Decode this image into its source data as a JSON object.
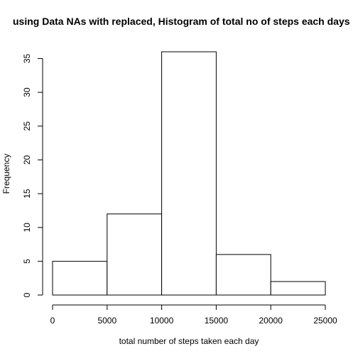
{
  "chart_data": {
    "type": "bar",
    "subtype": "histogram",
    "title": "using Data NAs with replaced, Histogram of total no of steps each days",
    "xlabel": "total number of steps taken each day",
    "ylabel": "Frequency",
    "bins": [
      {
        "start": 0,
        "end": 5000,
        "count": 5
      },
      {
        "start": 5000,
        "end": 10000,
        "count": 12
      },
      {
        "start": 10000,
        "end": 15000,
        "count": 36
      },
      {
        "start": 15000,
        "end": 20000,
        "count": 6
      },
      {
        "start": 20000,
        "end": 25000,
        "count": 2
      }
    ],
    "xlim": [
      0,
      25000
    ],
    "ylim": [
      0,
      36
    ],
    "x_ticks": [
      0,
      5000,
      10000,
      15000,
      20000,
      25000
    ],
    "x_tick_labels": [
      "0",
      "5000",
      "10000",
      "15000",
      "20000",
      "25000"
    ],
    "y_ticks": [
      0,
      5,
      10,
      15,
      20,
      25,
      30,
      35
    ],
    "y_tick_labels": [
      "0",
      "5",
      "10",
      "15",
      "20",
      "25",
      "30",
      "35"
    ],
    "grid": false,
    "legend": "none",
    "colors": {
      "bar_fill": "#ffffff",
      "bar_stroke": "#000000",
      "background": "#ffffff"
    }
  }
}
